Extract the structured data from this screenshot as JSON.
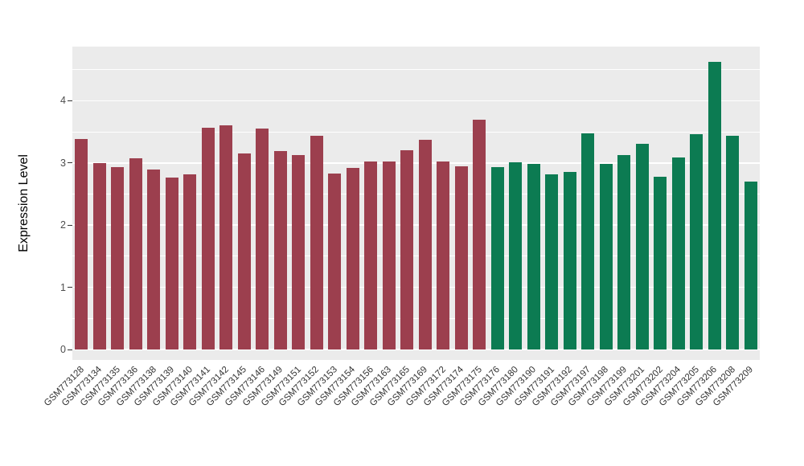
{
  "panel": {
    "background": "#EBEBEB",
    "gridline_color": "#FFFFFF"
  },
  "chart_data": {
    "type": "bar",
    "title": "",
    "xlabel": "",
    "ylabel": "Expression Level",
    "ylim": [
      0,
      4.87
    ],
    "yticks": [
      0,
      1,
      2,
      3,
      4
    ],
    "minor_gridlines": [
      0.5,
      1.5,
      2.5,
      3.5,
      4.5
    ],
    "grid": "white major and minor horizontal gridlines on gray panel",
    "legend_position": "none",
    "categories": [
      "GSM773128",
      "GSM773134",
      "GSM773135",
      "GSM773136",
      "GSM773138",
      "GSM773139",
      "GSM773140",
      "GSM773141",
      "GSM773142",
      "GSM773145",
      "GSM773146",
      "GSM773149",
      "GSM773151",
      "GSM773152",
      "GSM773153",
      "GSM773154",
      "GSM773156",
      "GSM773163",
      "GSM773165",
      "GSM773169",
      "GSM773172",
      "GSM773174",
      "GSM773175",
      "GSM773176",
      "GSM773180",
      "GSM773190",
      "GSM773191",
      "GSM773192",
      "GSM773197",
      "GSM773198",
      "GSM773199",
      "GSM773201",
      "GSM773202",
      "GSM773204",
      "GSM773205",
      "GSM773206",
      "GSM773208",
      "GSM773209"
    ],
    "values": [
      3.38,
      3.0,
      2.93,
      3.07,
      2.9,
      2.77,
      2.82,
      3.56,
      3.61,
      3.15,
      3.55,
      3.19,
      3.12,
      3.44,
      2.83,
      2.92,
      3.02,
      3.02,
      3.21,
      3.37,
      3.02,
      2.95,
      3.69,
      2.93,
      3.01,
      2.99,
      2.81,
      2.85,
      3.47,
      2.98,
      3.12,
      3.31,
      2.78,
      3.09,
      3.46,
      4.62,
      3.43,
      2.7
    ],
    "color_groups": [
      {
        "color": "#9C3F4E",
        "count": 23
      },
      {
        "color": "#0C7B52",
        "count": 15
      }
    ]
  }
}
